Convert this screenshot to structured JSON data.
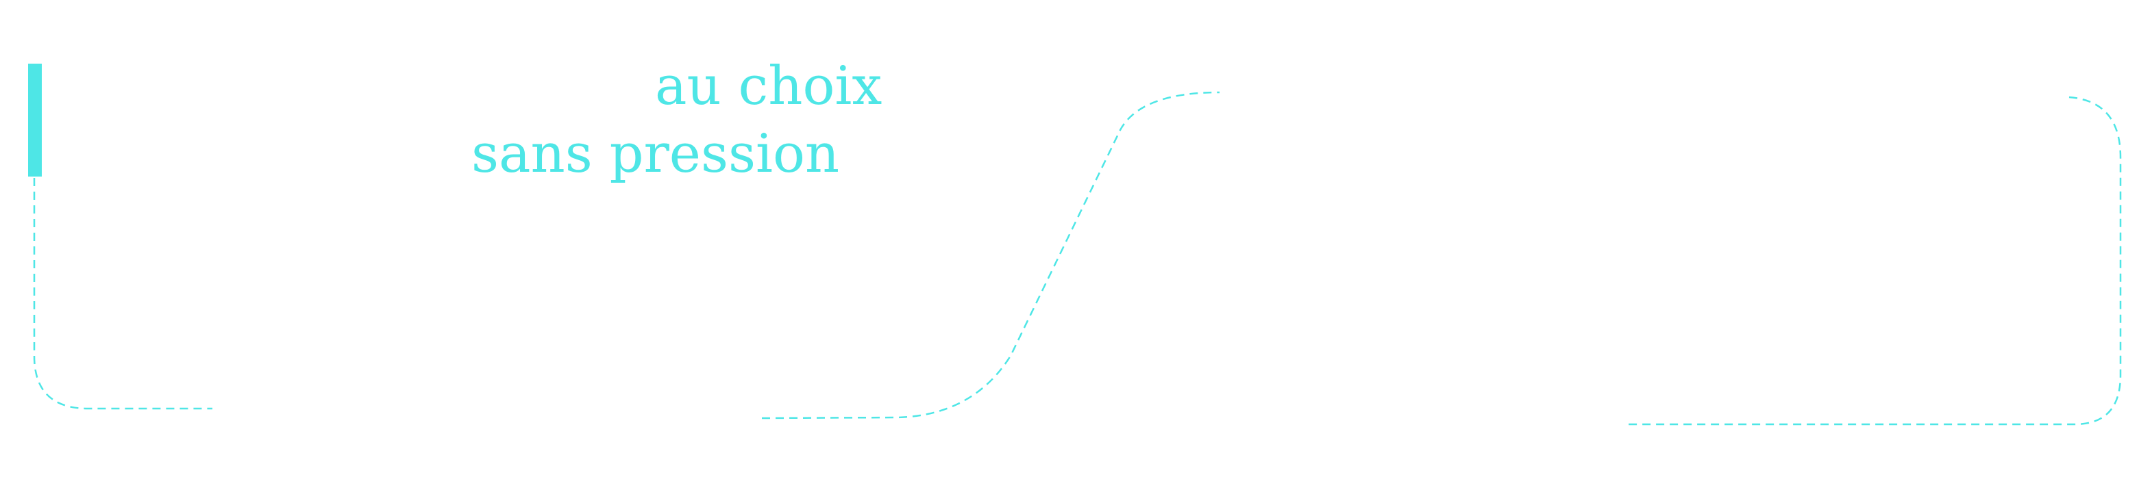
{
  "colors": {
    "accent": "#4ee6e6",
    "background": "#ffffff"
  },
  "tagline": {
    "line1": "au choix",
    "line2": "sans pression"
  }
}
